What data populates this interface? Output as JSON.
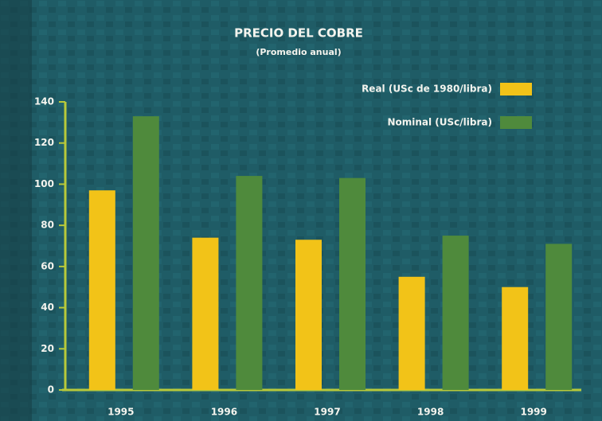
{
  "chart_data": {
    "type": "bar",
    "title": "PRECIO DEL COBRE",
    "subtitle": "(Promedio anual)",
    "categories": [
      "1995",
      "1996",
      "1997",
      "1998",
      "1999"
    ],
    "series": [
      {
        "name": "Real (USc de 1980/libra)",
        "color": "#f2c318",
        "values": [
          97,
          74,
          73,
          55,
          50
        ]
      },
      {
        "name": "Nominal (USc/libra)",
        "color": "#4f8a3c",
        "values": [
          133,
          104,
          103,
          75,
          71
        ]
      }
    ],
    "ylim": [
      0,
      140
    ],
    "yticks": [
      0,
      20,
      40,
      60,
      80,
      100,
      120,
      140
    ],
    "legend": "upper right"
  }
}
